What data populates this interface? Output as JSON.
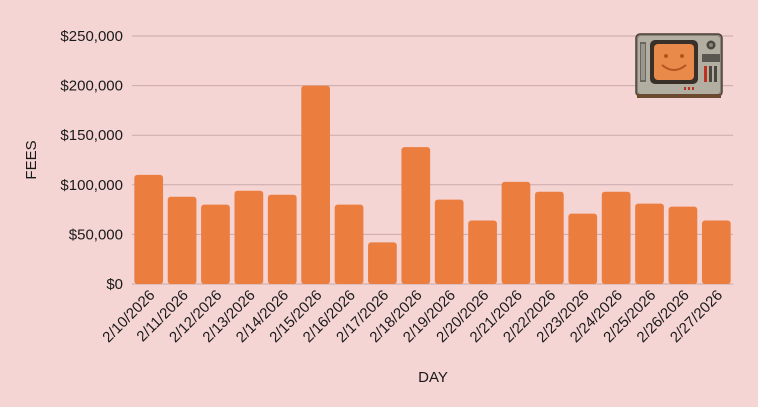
{
  "colors": {
    "background": "#f5d4d4",
    "bar": "#eb7d3f",
    "grid": "#c9a9a9",
    "text": "#1a1a1a"
  },
  "logo": {
    "icon": "retro-tv-smiley-icon"
  },
  "chart_data": {
    "type": "bar",
    "title": "",
    "xlabel": "DAY",
    "ylabel": "FEES",
    "ylim": [
      0,
      250000
    ],
    "yticks": [
      0,
      50000,
      100000,
      150000,
      200000,
      250000
    ],
    "ytick_labels": [
      "$0",
      "$50,000",
      "$100,000",
      "$150,000",
      "$200,000",
      "$250,000"
    ],
    "grid": true,
    "categories": [
      "2/10/2026",
      "2/11/2026",
      "2/12/2026",
      "2/13/2026",
      "2/14/2026",
      "2/15/2026",
      "2/16/2026",
      "2/17/2026",
      "2/18/2026",
      "2/19/2026",
      "2/20/2026",
      "2/21/2026",
      "2/22/2026",
      "2/23/2026",
      "2/24/2026",
      "2/25/2026",
      "2/26/2026",
      "2/27/2026"
    ],
    "values": [
      110000,
      88000,
      80000,
      94000,
      90000,
      200000,
      80000,
      42000,
      138000,
      85000,
      64000,
      103000,
      93000,
      71000,
      93000,
      81000,
      78000,
      64000
    ]
  }
}
